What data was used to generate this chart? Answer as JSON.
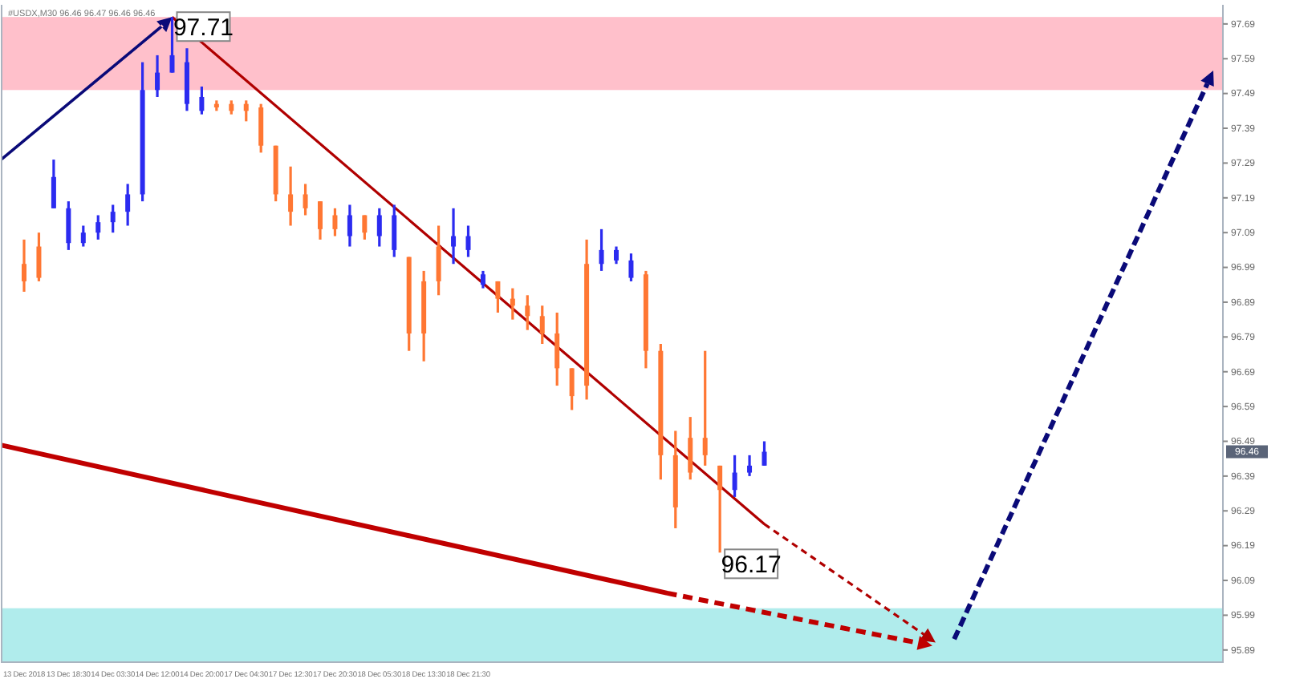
{
  "chart_data": {
    "type": "candlestick",
    "subtitle": "#USDX,M30  96.46 96.47 96.46 96.46",
    "categories": [
      "13 Dec 2018",
      null,
      null,
      "13 Dec 18:30",
      null,
      null,
      "14 Dec 03:30",
      null,
      null,
      "14 Dec 12:00",
      null,
      null,
      "14 Dec 20:00",
      null,
      null,
      "17 Dec 04:30",
      null,
      null,
      "17 Dec 12:30",
      null,
      null,
      "17 Dec 20:30",
      null,
      null,
      "18 Dec 05:30",
      null,
      null,
      "18 Dec 13:30",
      null,
      null,
      "18 Dec 21:30",
      null,
      null,
      null,
      null,
      null,
      null,
      null,
      null,
      null,
      null,
      null,
      null,
      null,
      null,
      null,
      null,
      null,
      null,
      null,
      null,
      null,
      null,
      null,
      null,
      null,
      null,
      null,
      null,
      null,
      null,
      null,
      null,
      null,
      null,
      null,
      null,
      null,
      null,
      null,
      null,
      null,
      null,
      null,
      null,
      null,
      null,
      null,
      null,
      null,
      null
    ],
    "ohlc": [
      [
        97.0,
        97.07,
        96.92,
        96.95
      ],
      [
        97.05,
        97.09,
        96.95,
        96.96
      ],
      [
        97.16,
        97.3,
        97.16,
        97.25
      ],
      [
        97.06,
        97.18,
        97.04,
        97.16
      ],
      [
        97.06,
        97.11,
        97.05,
        97.09
      ],
      [
        97.09,
        97.14,
        97.07,
        97.12
      ],
      [
        97.12,
        97.17,
        97.09,
        97.15
      ],
      [
        97.15,
        97.23,
        97.11,
        97.2
      ],
      [
        97.2,
        97.58,
        97.18,
        97.5
      ],
      [
        97.5,
        97.6,
        97.48,
        97.55
      ],
      [
        97.55,
        97.71,
        97.55,
        97.6
      ],
      [
        97.46,
        97.62,
        97.44,
        97.58
      ],
      [
        97.44,
        97.51,
        97.43,
        97.48
      ],
      [
        97.46,
        97.47,
        97.44,
        97.45
      ],
      [
        97.46,
        97.47,
        97.43,
        97.44
      ],
      [
        97.46,
        97.47,
        97.41,
        97.44
      ],
      [
        97.45,
        97.46,
        97.32,
        97.34
      ],
      [
        97.34,
        97.34,
        97.18,
        97.2
      ],
      [
        97.2,
        97.28,
        97.11,
        97.15
      ],
      [
        97.2,
        97.23,
        97.14,
        97.16
      ],
      [
        97.18,
        97.18,
        97.07,
        97.1
      ],
      [
        97.14,
        97.16,
        97.08,
        97.1
      ],
      [
        97.08,
        97.17,
        97.05,
        97.14
      ],
      [
        97.14,
        97.14,
        97.07,
        97.09
      ],
      [
        97.08,
        97.16,
        97.05,
        97.14
      ],
      [
        97.04,
        97.17,
        97.02,
        97.14
      ],
      [
        97.02,
        97.02,
        96.75,
        96.8
      ],
      [
        96.95,
        96.98,
        96.72,
        96.8
      ],
      [
        97.05,
        97.11,
        96.91,
        96.95
      ],
      [
        97.05,
        97.16,
        97.0,
        97.08
      ],
      [
        97.04,
        97.11,
        97.02,
        97.08
      ],
      [
        96.94,
        96.98,
        96.93,
        96.97
      ],
      [
        96.95,
        96.95,
        96.86,
        96.9
      ],
      [
        96.9,
        96.93,
        96.84,
        96.88
      ],
      [
        96.88,
        96.91,
        96.81,
        96.85
      ],
      [
        96.85,
        96.88,
        96.77,
        96.8
      ],
      [
        96.8,
        96.86,
        96.65,
        96.7
      ],
      [
        96.7,
        96.7,
        96.58,
        96.62
      ],
      [
        97.0,
        97.07,
        96.61,
        96.65
      ],
      [
        97.0,
        97.1,
        96.98,
        97.04
      ],
      [
        97.01,
        97.05,
        97.0,
        97.04
      ],
      [
        96.96,
        97.03,
        96.95,
        97.01
      ],
      [
        96.97,
        96.98,
        96.7,
        96.75
      ],
      [
        96.75,
        96.77,
        96.38,
        96.45
      ],
      [
        96.45,
        96.52,
        96.24,
        96.3
      ],
      [
        96.5,
        96.56,
        96.38,
        96.4
      ],
      [
        96.5,
        96.75,
        96.42,
        96.45
      ],
      [
        96.42,
        96.42,
        96.17,
        96.35
      ],
      [
        96.35,
        96.45,
        96.33,
        96.4
      ],
      [
        96.4,
        96.45,
        96.39,
        96.42
      ],
      [
        96.42,
        96.49,
        96.42,
        96.46
      ],
      null,
      null,
      null,
      null,
      null,
      null,
      null,
      null,
      null,
      null,
      null,
      null,
      null,
      null,
      null,
      null,
      null,
      null,
      null,
      null,
      null,
      null,
      null,
      null,
      null,
      null,
      null,
      null,
      null,
      null
    ],
    "colors": [
      "#ff7733",
      "#ff7733",
      "#2b2bf0",
      "#2b2bf0",
      "#2b2bf0",
      "#2b2bf0",
      "#2b2bf0",
      "#2b2bf0",
      "#2b2bf0",
      "#2b2bf0",
      "#2b2bf0",
      "#2b2bf0",
      "#2b2bf0",
      "#ff7733",
      "#ff7733",
      "#ff7733",
      "#ff7733",
      "#ff7733",
      "#ff7733",
      "#ff7733",
      "#ff7733",
      "#ff7733",
      "#2b2bf0",
      "#ff7733",
      "#2b2bf0",
      "#2b2bf0",
      "#ff7733",
      "#ff7733",
      "#ff7733",
      "#2b2bf0",
      "#2b2bf0",
      "#2b2bf0",
      "#ff7733",
      "#ff7733",
      "#ff7733",
      "#ff7733",
      "#ff7733",
      "#ff7733",
      "#ff7733",
      "#2b2bf0",
      "#2b2bf0",
      "#2b2bf0",
      "#ff7733",
      "#ff7733",
      "#ff7733",
      "#ff7733",
      "#ff7733",
      "#ff7733",
      "#2b2bf0",
      "#2b2bf0",
      "#2b2bf0",
      null,
      null,
      null,
      null,
      null,
      null,
      null,
      null,
      null,
      null,
      null,
      null,
      null,
      null,
      null,
      null,
      null,
      null,
      null,
      null,
      null,
      null,
      null,
      null,
      null,
      null,
      null,
      null,
      null,
      null
    ],
    "ylim": [
      95.855,
      97.745
    ],
    "yticks": [
      97.69,
      97.59,
      97.49,
      97.39,
      97.29,
      97.19,
      97.09,
      96.99,
      96.89,
      96.79,
      96.69,
      96.59,
      96.49,
      96.39,
      96.29,
      96.19,
      96.09,
      95.99,
      95.89
    ],
    "bands": [
      {
        "axis": "y",
        "from": 97.5,
        "to": 97.71,
        "color": "#ffc0cb"
      },
      {
        "axis": "y",
        "from": 95.855,
        "to": 96.01,
        "color": "#b0ecec"
      }
    ],
    "annotations": [
      "97.71",
      "96.17",
      "96.46"
    ]
  }
}
